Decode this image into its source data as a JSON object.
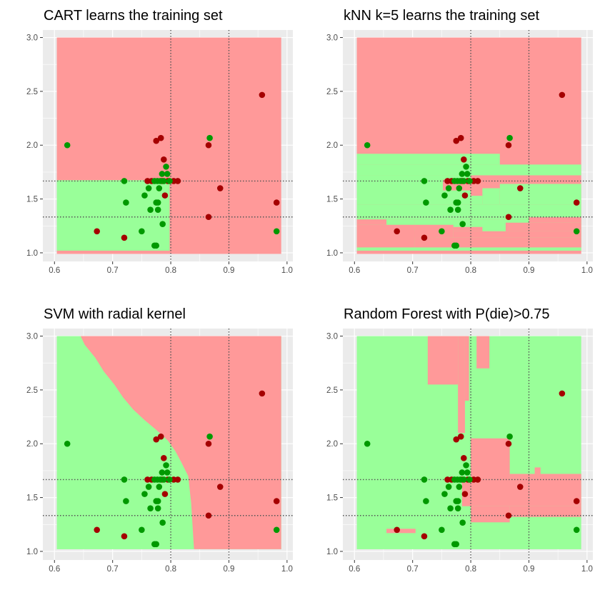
{
  "chart_data": [
    {
      "type": "scatter",
      "title": "CART learns the training set",
      "xlim": [
        0.58,
        1.01
      ],
      "ylim": [
        0.92,
        3.07
      ],
      "xticks": [
        "0.6",
        "0.7",
        "0.8",
        "0.9",
        "1.0"
      ],
      "yticks": [
        "1.0",
        "1.5",
        "2.0",
        "2.5",
        "3.0"
      ],
      "ref_lines": {
        "x": [
          0.8,
          0.9
        ],
        "y": [
          1.333,
          1.667
        ]
      },
      "colors": {
        "die": "#a50000",
        "live": "#009900",
        "die_region": "#ff9999",
        "live_region": "#99ff99",
        "panel": "#ebebeb"
      },
      "regions": [
        {
          "class": "die",
          "x": [
            0.604,
            0.99
          ],
          "y": [
            0.99,
            3.0
          ]
        },
        {
          "class": "live",
          "x": [
            0.604,
            0.798
          ],
          "y": [
            1.02,
            1.675
          ]
        }
      ]
    },
    {
      "type": "scatter",
      "title": "kNN k=5 learns the training set",
      "xlim": [
        0.58,
        1.01
      ],
      "ylim": [
        0.92,
        3.07
      ],
      "xticks": [
        "0.6",
        "0.7",
        "0.8",
        "0.9",
        "1.0"
      ],
      "yticks": [
        "1.0",
        "1.5",
        "2.0",
        "2.5",
        "3.0"
      ],
      "ref_lines": {
        "x": [
          0.8,
          0.9
        ],
        "y": [
          1.333,
          1.667
        ]
      },
      "colors": {
        "die": "#a50000",
        "live": "#009900",
        "die_region": "#ff9999",
        "live_region": "#99ff99",
        "panel": "#ebebeb"
      },
      "regions": [
        {
          "class": "die",
          "x": [
            0.604,
            0.99
          ],
          "y": [
            0.99,
            3.0
          ]
        },
        {
          "class": "live",
          "x": [
            0.604,
            0.99
          ],
          "y": [
            1.72,
            1.82
          ]
        },
        {
          "class": "live",
          "x": [
            0.604,
            0.85
          ],
          "y": [
            1.82,
            1.92
          ]
        },
        {
          "class": "live",
          "x": [
            0.604,
            0.752
          ],
          "y": [
            1.45,
            1.72
          ]
        },
        {
          "class": "live",
          "x": [
            0.752,
            0.8
          ],
          "y": [
            1.68,
            1.72
          ]
        },
        {
          "class": "live",
          "x": [
            0.85,
            0.99
          ],
          "y": [
            1.45,
            1.64
          ]
        },
        {
          "class": "live",
          "x": [
            0.82,
            0.85
          ],
          "y": [
            1.45,
            1.6
          ]
        },
        {
          "class": "live",
          "x": [
            0.752,
            0.8
          ],
          "y": [
            1.45,
            1.58
          ]
        },
        {
          "class": "live",
          "x": [
            0.8,
            0.82
          ],
          "y": [
            1.45,
            1.53
          ]
        },
        {
          "class": "live",
          "x": [
            0.604,
            0.99
          ],
          "y": [
            1.33,
            1.45
          ]
        },
        {
          "class": "live",
          "x": [
            0.604,
            0.99
          ],
          "y": [
            1.31,
            1.33
          ]
        },
        {
          "class": "live",
          "x": [
            0.604,
            0.703
          ],
          "y": [
            1.2,
            1.31
          ]
        },
        {
          "class": "live",
          "x": [
            0.703,
            0.99
          ],
          "y": [
            1.2,
            1.31
          ]
        },
        {
          "class": "live",
          "x": [
            0.604,
            0.99
          ],
          "y": [
            1.02,
            1.2
          ]
        },
        {
          "class": "die",
          "x": [
            0.604,
            0.655
          ],
          "y": [
            1.26,
            1.31
          ]
        },
        {
          "class": "die",
          "x": [
            0.604,
            0.703
          ],
          "y": [
            1.05,
            1.26
          ]
        },
        {
          "class": "die",
          "x": [
            0.703,
            0.77
          ],
          "y": [
            1.14,
            1.26
          ]
        },
        {
          "class": "die",
          "x": [
            0.77,
            0.99
          ],
          "y": [
            1.14,
            1.2
          ]
        },
        {
          "class": "die",
          "x": [
            0.86,
            0.99
          ],
          "y": [
            1.2,
            1.28
          ]
        },
        {
          "class": "die",
          "x": [
            0.9,
            0.99
          ],
          "y": [
            1.28,
            1.33
          ]
        },
        {
          "class": "die",
          "x": [
            0.77,
            0.82
          ],
          "y": [
            1.2,
            1.24
          ]
        },
        {
          "class": "die",
          "x": [
            0.703,
            0.99
          ],
          "y": [
            1.05,
            1.14
          ]
        },
        {
          "class": "die",
          "x": [
            0.703,
            0.74
          ],
          "y": [
            1.14,
            1.2
          ]
        }
      ]
    },
    {
      "type": "scatter",
      "title": "SVM with radial kernel",
      "xlim": [
        0.58,
        1.01
      ],
      "ylim": [
        0.92,
        3.07
      ],
      "xticks": [
        "0.6",
        "0.7",
        "0.8",
        "0.9",
        "1.0"
      ],
      "yticks": [
        "1.0",
        "1.5",
        "2.0",
        "2.5",
        "3.0"
      ],
      "ref_lines": {
        "x": [
          0.8,
          0.9
        ],
        "y": [
          1.333,
          1.667
        ]
      },
      "colors": {
        "die": "#a50000",
        "live": "#009900",
        "die_region": "#ff9999",
        "live_region": "#99ff99",
        "panel": "#ebebeb"
      },
      "regions": [
        {
          "class": "live",
          "x": [
            0.604,
            0.99
          ],
          "y": [
            1.02,
            3.0
          ]
        },
        {
          "class": "die",
          "polygon": [
            [
              0.645,
              3.0
            ],
            [
              0.99,
              3.0
            ],
            [
              0.99,
              1.02
            ],
            [
              0.84,
              1.02
            ],
            [
              0.835,
              1.45
            ],
            [
              0.83,
              1.7
            ],
            [
              0.818,
              1.83
            ],
            [
              0.808,
              1.93
            ],
            [
              0.795,
              2.03
            ],
            [
              0.775,
              2.13
            ],
            [
              0.755,
              2.22
            ],
            [
              0.735,
              2.32
            ],
            [
              0.718,
              2.43
            ],
            [
              0.703,
              2.55
            ],
            [
              0.685,
              2.67
            ],
            [
              0.67,
              2.8
            ],
            [
              0.652,
              2.92
            ]
          ]
        }
      ]
    },
    {
      "type": "scatter",
      "title": "Random Forest with P(die)>0.75",
      "xlim": [
        0.58,
        1.01
      ],
      "ylim": [
        0.92,
        3.07
      ],
      "xticks": [
        "0.6",
        "0.7",
        "0.8",
        "0.9",
        "1.0"
      ],
      "yticks": [
        "1.0",
        "1.5",
        "2.0",
        "2.5",
        "3.0"
      ],
      "ref_lines": {
        "x": [
          0.8,
          0.9
        ],
        "y": [
          1.333,
          1.667
        ]
      },
      "colors": {
        "die": "#a50000",
        "live": "#009900",
        "die_region": "#ff9999",
        "live_region": "#99ff99",
        "panel": "#ebebeb"
      },
      "regions": [
        {
          "class": "live",
          "x": [
            0.604,
            0.99
          ],
          "y": [
            1.02,
            3.0
          ]
        },
        {
          "class": "die",
          "x": [
            0.726,
            0.778
          ],
          "y": [
            2.55,
            3.0
          ]
        },
        {
          "class": "die",
          "x": [
            0.778,
            0.79
          ],
          "y": [
            2.1,
            3.0
          ]
        },
        {
          "class": "die",
          "x": [
            0.79,
            0.797
          ],
          "y": [
            2.4,
            3.0
          ]
        },
        {
          "class": "die",
          "x": [
            0.81,
            0.832
          ],
          "y": [
            2.7,
            3.0
          ]
        },
        {
          "class": "die",
          "x": [
            0.785,
            0.99
          ],
          "y": [
            1.42,
            1.67
          ]
        },
        {
          "class": "die",
          "x": [
            0.8,
            0.867
          ],
          "y": [
            1.67,
            2.05
          ]
        },
        {
          "class": "die",
          "x": [
            0.867,
            0.99
          ],
          "y": [
            1.67,
            1.72
          ]
        },
        {
          "class": "die",
          "x": [
            0.91,
            0.92
          ],
          "y": [
            1.72,
            1.78
          ]
        },
        {
          "class": "die",
          "x": [
            0.8,
            0.867
          ],
          "y": [
            1.27,
            1.42
          ]
        },
        {
          "class": "die",
          "x": [
            0.867,
            0.99
          ],
          "y": [
            1.32,
            1.42
          ]
        },
        {
          "class": "die",
          "x": [
            0.655,
            0.705
          ],
          "y": [
            1.17,
            1.21
          ]
        }
      ]
    }
  ],
  "points": {
    "die": [
      [
        0.673,
        1.2
      ],
      [
        0.72,
        1.14
      ],
      [
        0.76,
        1.667
      ],
      [
        0.767,
        1.667
      ],
      [
        0.775,
        2.04
      ],
      [
        0.783,
        2.067
      ],
      [
        0.785,
        1.667
      ],
      [
        0.788,
        1.867
      ],
      [
        0.79,
        1.533
      ],
      [
        0.795,
        1.667
      ],
      [
        0.805,
        1.667
      ],
      [
        0.812,
        1.667
      ],
      [
        0.865,
        2.0
      ],
      [
        0.865,
        1.333
      ],
      [
        0.885,
        1.6
      ],
      [
        0.957,
        2.467
      ],
      [
        0.982,
        1.467
      ]
    ],
    "live": [
      [
        0.622,
        2.0
      ],
      [
        0.72,
        1.667
      ],
      [
        0.723,
        1.467
      ],
      [
        0.75,
        1.2
      ],
      [
        0.755,
        1.533
      ],
      [
        0.762,
        1.6
      ],
      [
        0.765,
        1.4
      ],
      [
        0.772,
        1.667
      ],
      [
        0.772,
        1.067
      ],
      [
        0.775,
        1.067
      ],
      [
        0.775,
        1.467
      ],
      [
        0.777,
        1.667
      ],
      [
        0.778,
        1.467
      ],
      [
        0.778,
        1.4
      ],
      [
        0.78,
        1.6
      ],
      [
        0.782,
        1.667
      ],
      [
        0.785,
        1.733
      ],
      [
        0.786,
        1.267
      ],
      [
        0.788,
        1.667
      ],
      [
        0.792,
        1.8
      ],
      [
        0.794,
        1.733
      ],
      [
        0.798,
        1.667
      ],
      [
        0.867,
        2.067
      ],
      [
        0.982,
        1.2
      ]
    ]
  }
}
